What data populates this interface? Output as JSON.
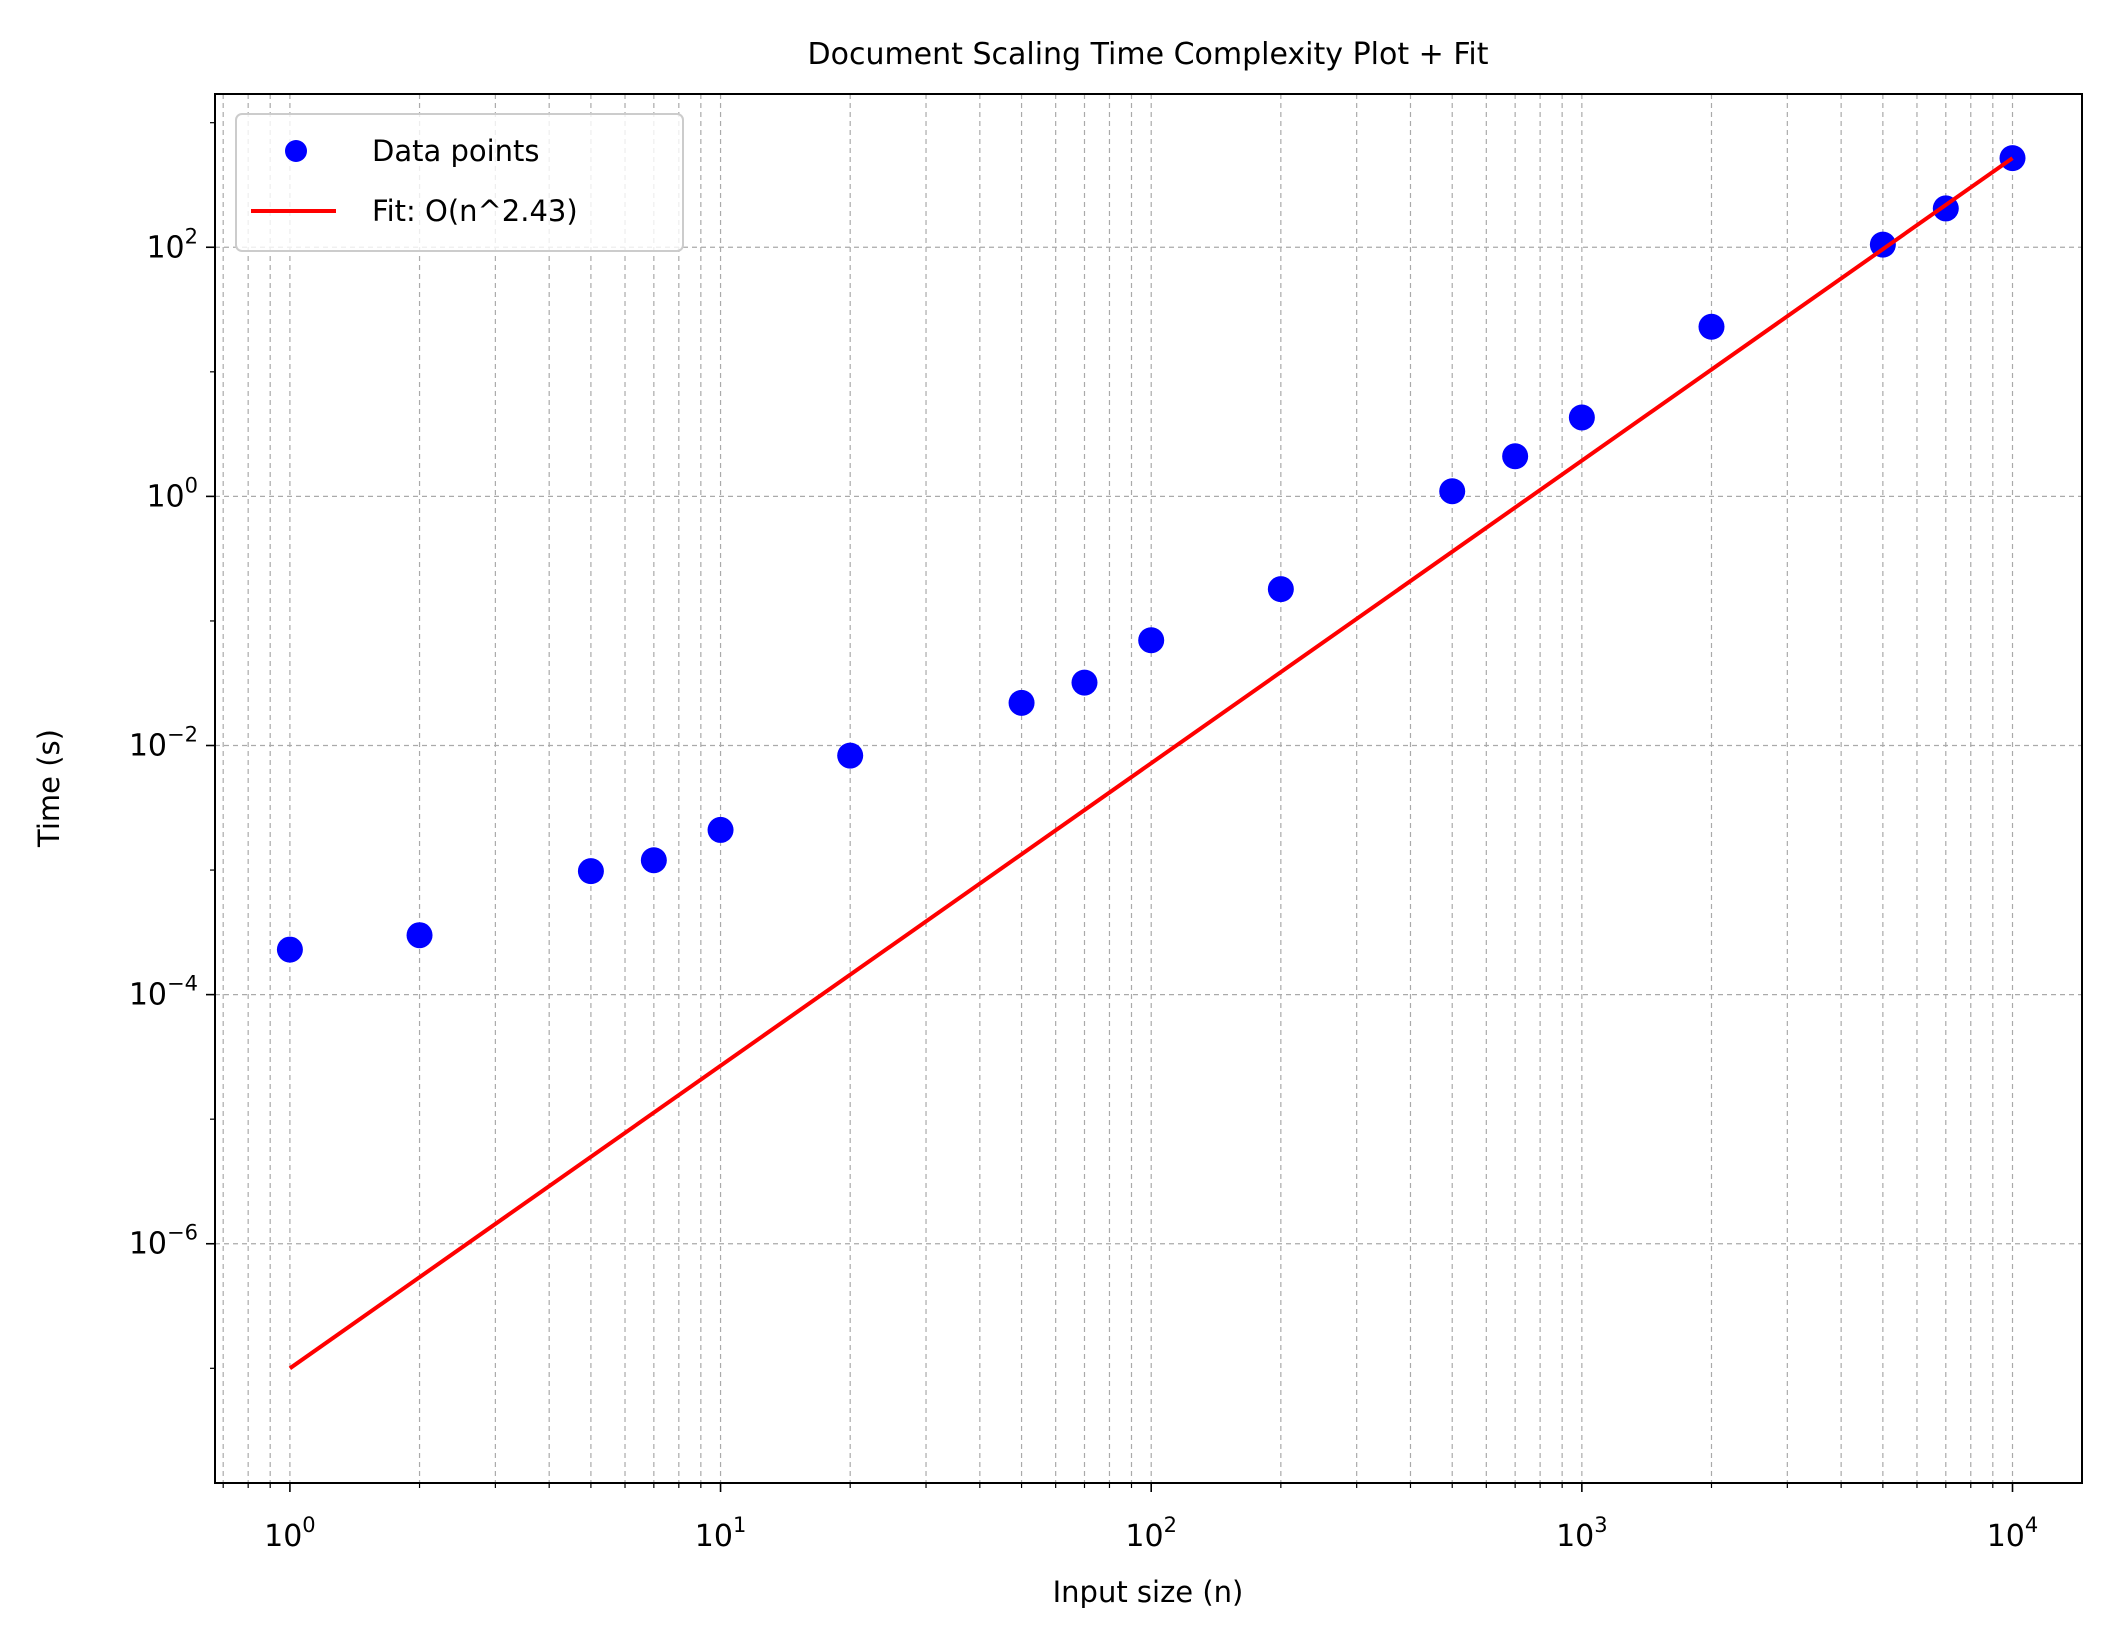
{
  "chart_data": {
    "type": "scatter",
    "title": "Document Scaling Time Complexity Plot + Fit",
    "xlabel": "Input size (n)",
    "ylabel": "Time (s)",
    "xscale": "log",
    "yscale": "log",
    "xlim": [
      0.67,
      14500
    ],
    "ylim": [
      1.2e-08,
      1700
    ],
    "grid": true,
    "grid_style": "dashed, major and minor",
    "legend_position": "top-left",
    "x_major_ticks": [
      {
        "value": 1,
        "base": "10",
        "exp": "0"
      },
      {
        "value": 10,
        "base": "10",
        "exp": "1"
      },
      {
        "value": 100,
        "base": "10",
        "exp": "2"
      },
      {
        "value": 1000,
        "base": "10",
        "exp": "3"
      },
      {
        "value": 10000,
        "base": "10",
        "exp": "4"
      }
    ],
    "y_major_ticks": [
      {
        "value": 1e-06,
        "base": "10",
        "exp": "−6"
      },
      {
        "value": 0.0001,
        "base": "10",
        "exp": "−4"
      },
      {
        "value": 0.01,
        "base": "10",
        "exp": "−2"
      },
      {
        "value": 1,
        "base": "10",
        "exp": "0"
      },
      {
        "value": 100,
        "base": "10",
        "exp": "2"
      }
    ],
    "series": [
      {
        "name": "Data points",
        "kind": "scatter",
        "color": "#0000ff",
        "x": [
          1,
          2,
          5,
          7,
          10,
          20,
          50,
          70,
          100,
          200,
          500,
          700,
          1000,
          2000,
          5000,
          7000,
          10000
        ],
        "y": [
          0.00023,
          0.0003,
          0.00098,
          0.0012,
          0.0021,
          0.0083,
          0.022,
          0.032,
          0.07,
          0.18,
          1.1,
          2.1,
          4.3,
          23,
          105,
          205,
          520
        ]
      },
      {
        "name": "Fit: O(n^2.43)",
        "kind": "line",
        "color": "#ff0000",
        "x": [
          1,
          10000
        ],
        "y": [
          1e-07,
          520
        ]
      }
    ]
  }
}
